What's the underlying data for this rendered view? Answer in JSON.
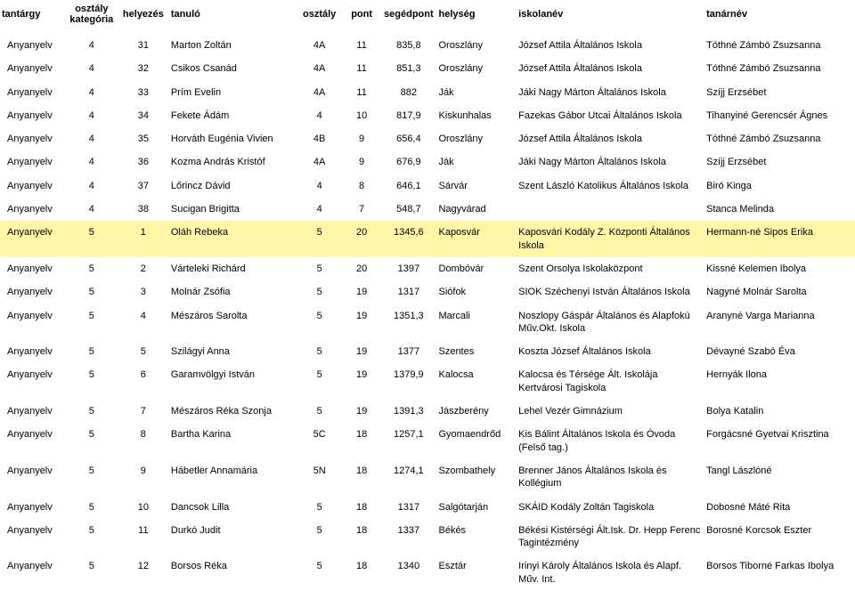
{
  "headers": {
    "tantargy": "tantárgy",
    "kategoria": "osztály kategória",
    "helyezes": "helyezés",
    "tanulo": "tanuló",
    "osztaly": "osztály",
    "pont": "pont",
    "segedpont": "segédpont",
    "helyseg": "helység",
    "iskola": "iskolanév",
    "tanar": "tanárnév"
  },
  "highlight_color": "#fff6a8",
  "rows": [
    {
      "tantargy": "Anyanyelv",
      "kategoria": "4",
      "helyezes": "31",
      "tanulo": "Marton Zoltán",
      "osztaly": "4A",
      "pont": "11",
      "segedpont": "835,8",
      "helyseg": "Oroszlány",
      "iskola": "József Attila Általános Iskola",
      "tanar": "Tóthné Zámbó Zsuzsanna",
      "highlight": false
    },
    {
      "tantargy": "Anyanyelv",
      "kategoria": "4",
      "helyezes": "32",
      "tanulo": "Csikos Csanád",
      "osztaly": "4A",
      "pont": "11",
      "segedpont": "851,3",
      "helyseg": "Oroszlány",
      "iskola": "József Attila Általános Iskola",
      "tanar": "Tóthné Zámbó Zsuzsanna",
      "highlight": false
    },
    {
      "tantargy": "Anyanyelv",
      "kategoria": "4",
      "helyezes": "33",
      "tanulo": "Prím Evelin",
      "osztaly": "4A",
      "pont": "11",
      "segedpont": "882",
      "helyseg": "Ják",
      "iskola": "Jáki Nagy Márton Általános Iskola",
      "tanar": "Szíjj Erzsébet",
      "highlight": false
    },
    {
      "tantargy": "Anyanyelv",
      "kategoria": "4",
      "helyezes": "34",
      "tanulo": "Fekete Ádám",
      "osztaly": "4",
      "pont": "10",
      "segedpont": "817,9",
      "helyseg": "Kiskunhalas",
      "iskola": "Fazekas Gábor Utcai Általános Iskola",
      "tanar": "Tihanyiné Gerencsér Ágnes",
      "highlight": false
    },
    {
      "tantargy": "Anyanyelv",
      "kategoria": "4",
      "helyezes": "35",
      "tanulo": "Horváth Eugénia Vivien",
      "osztaly": "4B",
      "pont": "9",
      "segedpont": "656,4",
      "helyseg": "Oroszlány",
      "iskola": "József Attila Általános Iskola",
      "tanar": "Tóthné Zámbó Zsuzsanna",
      "highlight": false
    },
    {
      "tantargy": "Anyanyelv",
      "kategoria": "4",
      "helyezes": "36",
      "tanulo": "Kozma András Kristóf",
      "osztaly": "4A",
      "pont": "9",
      "segedpont": "676,9",
      "helyseg": "Ják",
      "iskola": "Jáki Nagy Márton Általános Iskola",
      "tanar": "Szíjj Erzsébet",
      "highlight": false
    },
    {
      "tantargy": "Anyanyelv",
      "kategoria": "4",
      "helyezes": "37",
      "tanulo": "Lőrincz Dávid",
      "osztaly": "4",
      "pont": "8",
      "segedpont": "646,1",
      "helyseg": "Sárvár",
      "iskola": "Szent László Katolikus Általános Iskola",
      "tanar": "Biró Kinga",
      "highlight": false
    },
    {
      "tantargy": "Anyanyelv",
      "kategoria": "4",
      "helyezes": "38",
      "tanulo": "Sucigan Brigitta",
      "osztaly": "4",
      "pont": "7",
      "segedpont": "548,7",
      "helyseg": "Nagyvárad",
      "iskola": "",
      "tanar": "Stanca Melinda",
      "highlight": false
    },
    {
      "tantargy": "Anyanyelv",
      "kategoria": "5",
      "helyezes": "1",
      "tanulo": "Oláh Rebeka",
      "osztaly": "5",
      "pont": "20",
      "segedpont": "1345,6",
      "helyseg": "Kaposvár",
      "iskola": "Kaposvári Kodály Z. Központi Általános Iskola",
      "tanar": "Hermann-né Sipos Erika",
      "highlight": true
    },
    {
      "tantargy": "Anyanyelv",
      "kategoria": "5",
      "helyezes": "2",
      "tanulo": "Várteleki Richárd",
      "osztaly": "5",
      "pont": "20",
      "segedpont": "1397",
      "helyseg": "Dombóvár",
      "iskola": "Szent Orsolya Iskolaközpont",
      "tanar": "Kissné Kelemen Ibolya",
      "highlight": false
    },
    {
      "tantargy": "Anyanyelv",
      "kategoria": "5",
      "helyezes": "3",
      "tanulo": "Molnár Zsófia",
      "osztaly": "5",
      "pont": "19",
      "segedpont": "1317",
      "helyseg": "Siófok",
      "iskola": "SIOK Széchenyi István Általános Iskola",
      "tanar": "Nagyné Molnár Sarolta",
      "highlight": false
    },
    {
      "tantargy": "Anyanyelv",
      "kategoria": "5",
      "helyezes": "4",
      "tanulo": "Mészáros Sarolta",
      "osztaly": "5",
      "pont": "19",
      "segedpont": "1351,3",
      "helyseg": "Marcali",
      "iskola": "Noszlopy Gáspár Általános és Alapfokú Műv.Okt. Iskola",
      "tanar": "Aranyné Varga Marianna",
      "highlight": false
    },
    {
      "tantargy": "Anyanyelv",
      "kategoria": "5",
      "helyezes": "5",
      "tanulo": "Szilágyi Anna",
      "osztaly": "5",
      "pont": "19",
      "segedpont": "1377",
      "helyseg": "Szentes",
      "iskola": "Koszta József Általános Iskola",
      "tanar": "Dévayné Szabó Éva",
      "highlight": false
    },
    {
      "tantargy": "Anyanyelv",
      "kategoria": "5",
      "helyezes": "6",
      "tanulo": "Garamvölgyi István",
      "osztaly": "5",
      "pont": "19",
      "segedpont": "1379,9",
      "helyseg": "Kalocsa",
      "iskola": "Kalocsa és Térsége Ált. Iskolája Kertvárosi Tagiskola",
      "tanar": "Hernyák Ilona",
      "highlight": false
    },
    {
      "tantargy": "Anyanyelv",
      "kategoria": "5",
      "helyezes": "7",
      "tanulo": "Mészáros Réka Szonja",
      "osztaly": "5",
      "pont": "19",
      "segedpont": "1391,3",
      "helyseg": "Jászberény",
      "iskola": "Lehel Vezér Gimnázium",
      "tanar": "Bolya Katalin",
      "highlight": false
    },
    {
      "tantargy": "Anyanyelv",
      "kategoria": "5",
      "helyezes": "8",
      "tanulo": "Bartha Karina",
      "osztaly": "5C",
      "pont": "18",
      "segedpont": "1257,1",
      "helyseg": "Gyomaendrőd",
      "iskola": "Kis Bálint Általános Iskola és Óvoda (Felső tag.)",
      "tanar": "Forgácsné Gyetvai Krisztina",
      "highlight": false
    },
    {
      "tantargy": "Anyanyelv",
      "kategoria": "5",
      "helyezes": "9",
      "tanulo": "Hábetler Annamária",
      "osztaly": "5N",
      "pont": "18",
      "segedpont": "1274,1",
      "helyseg": "Szombathely",
      "iskola": "Brenner János Általános Iskola és Kollégium",
      "tanar": "Tangl Lászlóné",
      "highlight": false
    },
    {
      "tantargy": "Anyanyelv",
      "kategoria": "5",
      "helyezes": "10",
      "tanulo": "Dancsok Lilla",
      "osztaly": "5",
      "pont": "18",
      "segedpont": "1317",
      "helyseg": "Salgótarján",
      "iskola": "SKÁID Kodály Zoltán Tagiskola",
      "tanar": "Dobosné Máté Rita",
      "highlight": false
    },
    {
      "tantargy": "Anyanyelv",
      "kategoria": "5",
      "helyezes": "11",
      "tanulo": "Durkó Judit",
      "osztaly": "5",
      "pont": "18",
      "segedpont": "1337",
      "helyseg": "Békés",
      "iskola": "Békési Kistérségi Ált.Isk. Dr. Hepp Ferenc Tagintézmény",
      "tanar": "Borosné Korcsok Eszter",
      "highlight": false
    },
    {
      "tantargy": "Anyanyelv",
      "kategoria": "5",
      "helyezes": "12",
      "tanulo": "Borsos Réka",
      "osztaly": "5",
      "pont": "18",
      "segedpont": "1340",
      "helyseg": "Esztár",
      "iskola": "Irinyi Károly Általános Iskola és Alapf. Műv. Int.",
      "tanar": "Borsos Tiborné Farkas Ibolya",
      "highlight": false
    }
  ]
}
